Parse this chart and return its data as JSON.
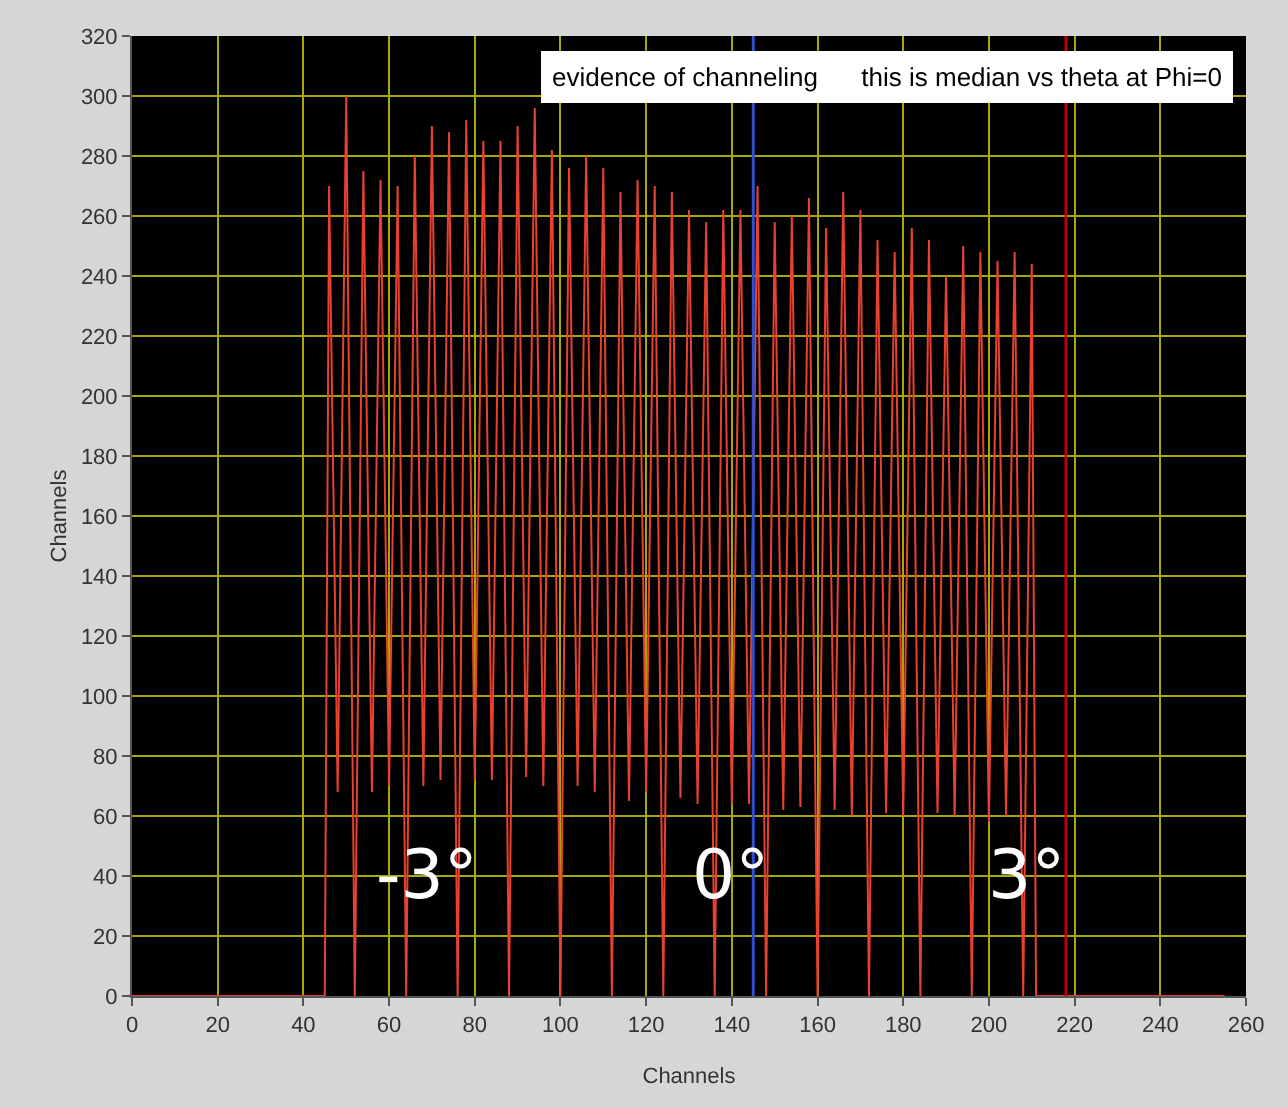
{
  "chart_data": {
    "type": "line",
    "xlabel": "Channels",
    "ylabel": "Channels",
    "annotations": [
      "evidence of channeling      this is median vs theta at Phi=0",
      "-3°",
      "0°",
      "3°"
    ],
    "series": [
      {
        "color": "#e8412f",
        "x": [
          0,
          45,
          46,
          48,
          50,
          52,
          54,
          56,
          58,
          60,
          62,
          64,
          66,
          68,
          70,
          72,
          74,
          76,
          78,
          80,
          82,
          84,
          86,
          88,
          90,
          92,
          94,
          96,
          98,
          100,
          102,
          104,
          106,
          108,
          110,
          112,
          114,
          116,
          118,
          120,
          122,
          124,
          126,
          128,
          130,
          132,
          134,
          136,
          138,
          140,
          142,
          144,
          146,
          148,
          150,
          152,
          154,
          156,
          158,
          160,
          162,
          164,
          166,
          168,
          170,
          172,
          174,
          176,
          178,
          180,
          182,
          184,
          186,
          188,
          190,
          192,
          194,
          196,
          198,
          200,
          202,
          204,
          206,
          208,
          210,
          211,
          255
        ],
        "values": [
          0,
          0,
          270,
          68,
          300,
          0,
          275,
          68,
          272,
          70,
          270,
          0,
          280,
          70,
          290,
          72,
          288,
          0,
          292,
          72,
          285,
          72,
          285,
          0,
          290,
          73,
          296,
          70,
          282,
          0,
          276,
          70,
          280,
          68,
          276,
          0,
          268,
          65,
          272,
          68,
          270,
          0,
          268,
          66,
          262,
          64,
          258,
          0,
          262,
          64,
          262,
          64,
          270,
          0,
          258,
          62,
          260,
          63,
          266,
          0,
          256,
          62,
          268,
          60,
          262,
          0,
          252,
          61,
          248,
          60,
          256,
          0,
          252,
          61,
          240,
          60,
          250,
          0,
          248,
          58,
          245,
          60,
          248,
          0,
          244,
          0,
          0
        ]
      }
    ],
    "xlim": [
      0,
      260
    ],
    "xticks": [
      0,
      20,
      40,
      60,
      80,
      100,
      120,
      140,
      160,
      180,
      200,
      220,
      240,
      260
    ],
    "ylim": [
      0,
      320
    ],
    "yticks": [
      0,
      20,
      40,
      60,
      80,
      100,
      120,
      140,
      160,
      180,
      200,
      220,
      240,
      260,
      280,
      300,
      320
    ],
    "grid": true,
    "marker": "none",
    "line_style": "solid",
    "ref_lines": [
      {
        "axis": "x",
        "value": 145,
        "color": "#3050d0"
      },
      {
        "axis": "x",
        "value": 218,
        "color": "#c00000"
      }
    ]
  }
}
